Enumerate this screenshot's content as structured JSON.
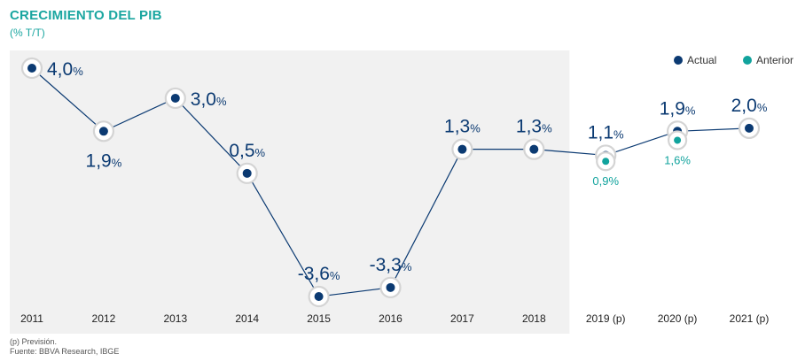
{
  "title": "CRECIMIENTO DEL PIB",
  "subtitle": "(% T/T)",
  "footnote": "(p) Previsión.",
  "source": "Fuente: BBVA Research, IBGE",
  "colors": {
    "actual": "#0b3a72",
    "anterior": "#11a39d",
    "shade": "#f1f1f1",
    "title": "#1aa6a0",
    "label": "#0b3a72"
  },
  "chart_data": {
    "type": "line",
    "categories": [
      "2011",
      "2012",
      "2013",
      "2014",
      "2015",
      "2016",
      "2017",
      "2018",
      "2019 (p)",
      "2020 (p)",
      "2021 (p)"
    ],
    "series": [
      {
        "name": "Actual",
        "values": [
          4.0,
          1.9,
          3.0,
          0.5,
          -3.6,
          -3.3,
          1.3,
          1.3,
          1.1,
          1.9,
          2.0
        ],
        "labels": [
          "4,0",
          "1,9",
          "3,0",
          "0,5",
          "-3,6",
          "-3,3",
          "1,3",
          "1,3",
          "1,1",
          "1,9",
          "2,0"
        ],
        "label_pos": [
          "right",
          "below",
          "right",
          "above",
          "above",
          "above",
          "above",
          "above",
          "above",
          "above",
          "above"
        ]
      },
      {
        "name": "Anterior",
        "values": [
          null,
          null,
          null,
          null,
          null,
          null,
          null,
          null,
          0.9,
          1.6,
          null
        ],
        "labels": [
          null,
          null,
          null,
          null,
          null,
          null,
          null,
          null,
          "0,9",
          "1,6",
          null
        ]
      }
    ],
    "unit": "%",
    "shaded_categories": [
      "2011",
      "2012",
      "2013",
      "2014",
      "2015",
      "2016",
      "2017",
      "2018"
    ],
    "legend": {
      "position": "top-right",
      "items": [
        "Actual",
        "Anterior"
      ]
    }
  }
}
